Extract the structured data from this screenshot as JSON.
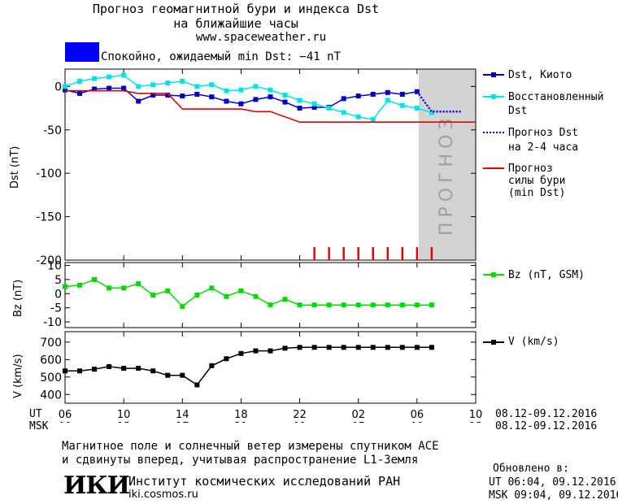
{
  "header": {
    "title_line1": "Прогноз геомагнитной бури и индекса Dst",
    "title_line2": "на ближайшие часы",
    "url": "www.spaceweather.ru",
    "status_text": "Спокойно, ожидаемый min Dst: −41 nT",
    "status_color": "#0000ff"
  },
  "legend": {
    "dst_kyoto": "Dst, Киото",
    "restored_l1": "Восстановленный",
    "restored_l2": "Dst",
    "forecast_l1": "Прогноз Dst",
    "forecast_l2": "на 2-4 часа",
    "storm_l1": "Прогноз",
    "storm_l2": "силы бури",
    "storm_l3": "(min Dst)",
    "bz": "Bz (nT, GSM)",
    "v": "V (km/s)"
  },
  "forecast_band_label": "ПРОГНОЗ",
  "axes": {
    "dst_ylabel": "Dst (nT)",
    "bz_ylabel": "Bz (nT)",
    "v_ylabel": "V (km/s)",
    "dst_ticks": [
      "0",
      "-50",
      "-100",
      "-150",
      "-200"
    ],
    "bz_ticks": [
      "10",
      "5",
      "0",
      "-5",
      "-10"
    ],
    "v_ticks": [
      "700",
      "600",
      "500",
      "400"
    ],
    "ut_label": "UT",
    "msk_label": "MSK",
    "ut_ticks": [
      "06",
      "10",
      "14",
      "18",
      "22",
      "02",
      "06",
      "10"
    ],
    "msk_ticks": [
      "09",
      "13",
      "17",
      "21",
      "01",
      "05",
      "09",
      "13"
    ],
    "ut_range": "08.12-09.12.2016",
    "msk_range": "08.12-09.12.2016"
  },
  "footer": {
    "note_line1": "Магнитное поле и солнечный ветер измерены спутником ACE",
    "note_line2": "и сдвинуты вперед, учитывая распространение L1-Земля",
    "institute": "Институт космических исследований РАН",
    "institute_url": "iki.cosmos.ru",
    "logo_text": "ИКИ",
    "updated_label": "Обновлено в:",
    "updated_ut": "UT  06:04, 09.12.2016",
    "updated_msk": "MSK 09:04, 09.12.2016"
  },
  "colors": {
    "dst": "#0000cc",
    "restored": "#00e5e5",
    "forecast": "#0000cc",
    "storm": "#ee0000",
    "bz": "#00dd00",
    "v": "#000000",
    "band": "#d3d3d3"
  },
  "chart_data": [
    {
      "type": "line",
      "panel": "dst",
      "x_unit": "hours from 06 UT 08.12.2016",
      "xlim": [
        0,
        28
      ],
      "ylim": [
        -200,
        20
      ],
      "forecast_band_x": [
        24,
        28
      ],
      "series": [
        {
          "name": "Dst, Киото",
          "x": [
            0,
            1,
            2,
            3,
            4,
            5,
            6,
            7,
            8,
            9,
            10,
            11,
            12,
            13,
            14,
            15,
            16,
            17,
            18,
            19,
            20,
            21,
            22,
            23,
            24
          ],
          "y": [
            -4,
            -8,
            -3,
            -2,
            -2,
            -17,
            -10,
            -10,
            -11,
            -9,
            -12,
            -17,
            -20,
            -15,
            -12,
            -18,
            -25,
            -24,
            -24,
            -14,
            -11,
            -9,
            -7,
            -9,
            -6
          ]
        },
        {
          "name": "Восстановленный Dst",
          "x": [
            0,
            1,
            2,
            3,
            4,
            5,
            6,
            7,
            8,
            9,
            10,
            11,
            12,
            13,
            14,
            15,
            16,
            17,
            18,
            19,
            20,
            21,
            22,
            23,
            24,
            25
          ],
          "y": [
            0,
            6,
            9,
            11,
            13,
            0,
            2,
            4,
            6,
            0,
            2,
            -5,
            -4,
            0,
            -4,
            -10,
            -16,
            -20,
            -25,
            -30,
            -35,
            -38,
            -16,
            -22,
            -25,
            -30
          ]
        },
        {
          "name": "Прогноз Dst на 2-4 часа",
          "x": [
            24,
            25,
            26,
            27
          ],
          "y": [
            -6,
            -29,
            -29,
            -29
          ]
        },
        {
          "name": "Прогноз силы бури (min Dst)",
          "x": [
            0,
            2,
            4,
            5,
            6,
            7,
            8,
            9,
            10,
            11,
            12,
            13,
            14,
            15,
            16,
            17,
            18,
            19,
            20,
            21,
            22,
            23,
            24,
            25,
            26,
            27,
            28
          ],
          "y": [
            -5,
            -5,
            -5,
            -8,
            -8,
            -8,
            -26,
            -26,
            -26,
            -26,
            -26,
            -29,
            -29,
            -35,
            -41,
            -41,
            -41,
            -41,
            -41,
            -41,
            -41,
            -41,
            -41,
            -41,
            -41,
            -41,
            -41
          ]
        }
      ],
      "ticks_red_x": [
        17,
        18,
        19,
        20,
        21,
        22,
        23,
        24,
        25
      ]
    },
    {
      "type": "line",
      "panel": "bz",
      "xlim": [
        0,
        28
      ],
      "ylim": [
        -12,
        11
      ],
      "series": [
        {
          "name": "Bz (nT, GSM)",
          "x": [
            0,
            1,
            2,
            3,
            4,
            5,
            6,
            7,
            8,
            9,
            10,
            11,
            12,
            13,
            14,
            15,
            16,
            17,
            18,
            19,
            20,
            21,
            22,
            23,
            24,
            25
          ],
          "y": [
            2.5,
            3,
            5,
            2,
            2,
            3.5,
            -0.5,
            1,
            -4.5,
            -0.5,
            2,
            -1,
            1,
            -1,
            -4,
            -2,
            -4,
            -4,
            -4,
            -4,
            -4,
            -4,
            -4,
            -4,
            -4,
            -4
          ]
        }
      ]
    },
    {
      "type": "line",
      "panel": "v",
      "xlim": [
        0,
        28
      ],
      "ylim": [
        350,
        760
      ],
      "series": [
        {
          "name": "V (km/s)",
          "x": [
            0,
            1,
            2,
            3,
            4,
            5,
            6,
            7,
            8,
            9,
            10,
            11,
            12,
            13,
            14,
            15,
            16,
            17,
            18,
            19,
            20,
            21,
            22,
            23,
            24,
            25
          ],
          "y": [
            535,
            535,
            545,
            560,
            550,
            550,
            535,
            510,
            510,
            455,
            565,
            605,
            635,
            650,
            650,
            665,
            670,
            670,
            670,
            670,
            670,
            670,
            670,
            670,
            670,
            670
          ]
        }
      ]
    }
  ]
}
